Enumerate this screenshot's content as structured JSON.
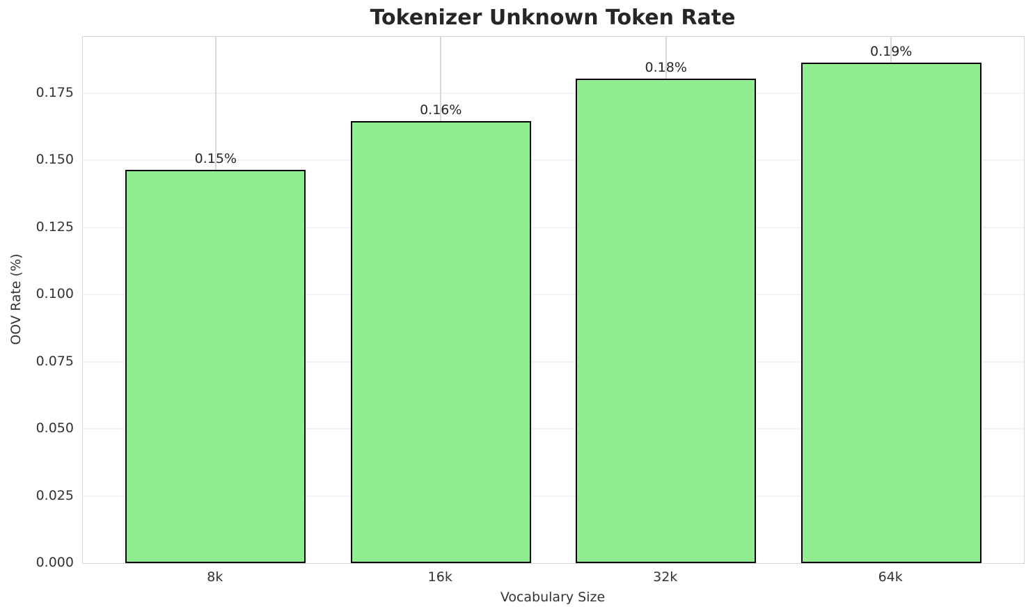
{
  "chart_data": {
    "type": "bar",
    "title": "Tokenizer Unknown Token Rate",
    "xlabel": "Vocabulary Size",
    "ylabel": "OOV Rate (%)",
    "categories": [
      "8k",
      "16k",
      "32k",
      "64k"
    ],
    "values": [
      0.1465,
      0.1647,
      0.1805,
      0.1865
    ],
    "bar_labels": [
      "0.15%",
      "0.16%",
      "0.18%",
      "0.19%"
    ],
    "yticks": [
      0.0,
      0.025,
      0.05,
      0.075,
      0.1,
      0.125,
      0.15,
      0.175
    ],
    "ytick_labels": [
      "0.000",
      "0.025",
      "0.050",
      "0.075",
      "0.100",
      "0.125",
      "0.150",
      "0.175"
    ],
    "ylim": [
      0,
      0.196
    ],
    "xlim": [
      -0.59,
      3.59
    ],
    "bar_width": 0.8,
    "grid": true,
    "legend_position": "none",
    "bar_color": "#90EE90",
    "bar_edge_color": "#000000"
  }
}
